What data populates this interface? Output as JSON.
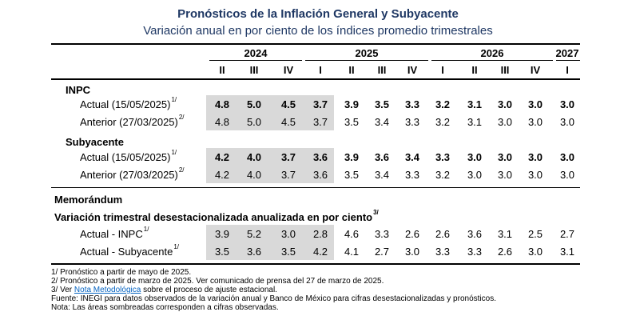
{
  "title": "Pronósticos de la Inflación General y Subyacente",
  "subtitle": "Variación anual en por ciento de los índices promedio trimestrales",
  "years": [
    "2024",
    "2025",
    "2026",
    "2027"
  ],
  "quarters": [
    "II",
    "III",
    "IV",
    "I",
    "II",
    "III",
    "IV",
    "I",
    "II",
    "III",
    "IV",
    "I"
  ],
  "sections": {
    "inpc": "INPC",
    "subyacente": "Subyacente",
    "memorandum": "Memorándum",
    "variacion": "Variación trimestral desestacionalizada anualizada en por ciento",
    "variacion_sup": "3/"
  },
  "rows": [
    {
      "label": "Actual (15/05/2025)",
      "sup": "1/",
      "bold": true,
      "values": [
        "4.8",
        "5.0",
        "4.5",
        "3.7",
        "3.9",
        "3.5",
        "3.3",
        "3.2",
        "3.1",
        "3.0",
        "3.0",
        "3.0"
      ]
    },
    {
      "label": "Anterior (27/03/2025)",
      "sup": "2/",
      "bold": false,
      "values": [
        "4.8",
        "5.0",
        "4.5",
        "3.7",
        "3.5",
        "3.4",
        "3.3",
        "3.2",
        "3.1",
        "3.0",
        "3.0",
        "3.0"
      ]
    },
    {
      "label": "Actual (15/05/2025)",
      "sup": "1/",
      "bold": true,
      "values": [
        "4.2",
        "4.0",
        "3.7",
        "3.6",
        "3.9",
        "3.6",
        "3.4",
        "3.3",
        "3.0",
        "3.0",
        "3.0",
        "3.0"
      ]
    },
    {
      "label": "Anterior (27/03/2025)",
      "sup": "2/",
      "bold": false,
      "values": [
        "4.2",
        "4.0",
        "3.7",
        "3.6",
        "3.5",
        "3.4",
        "3.3",
        "3.2",
        "3.0",
        "3.0",
        "3.0",
        "3.0"
      ]
    },
    {
      "label": "Actual - INPC",
      "sup": "1/",
      "bold": false,
      "values": [
        "3.9",
        "5.2",
        "3.0",
        "2.8",
        "4.6",
        "3.3",
        "2.6",
        "2.6",
        "3.6",
        "3.1",
        "2.5",
        "2.7"
      ]
    },
    {
      "label": "Actual - Subyacente",
      "sup": "1/",
      "bold": false,
      "values": [
        "3.5",
        "3.6",
        "3.5",
        "4.2",
        "4.1",
        "2.7",
        "3.0",
        "3.3",
        "3.3",
        "2.6",
        "3.0",
        "3.1"
      ]
    }
  ],
  "footnotes": {
    "f1": "1/ Pronóstico a partir de mayo de 2025.",
    "f2": "2/ Pronóstico a partir de marzo de 2025. Ver comunicado de prensa del 27 de marzo de 2025.",
    "f3_prefix": "3/ Ver ",
    "f3_link": "Nota Metodológica",
    "f3_suffix": " sobre el proceso de ajuste estacional.",
    "fuente": "Fuente: INEGI para datos observados de la variación anual y Banco de México para cifras desestacionalizadas y pronósticos.",
    "nota": "Nota: Las áreas sombreadas corresponden a cifras observadas."
  },
  "colors": {
    "title": "#1f3864",
    "shade": "#d9d9d9",
    "link": "#0563c1"
  }
}
